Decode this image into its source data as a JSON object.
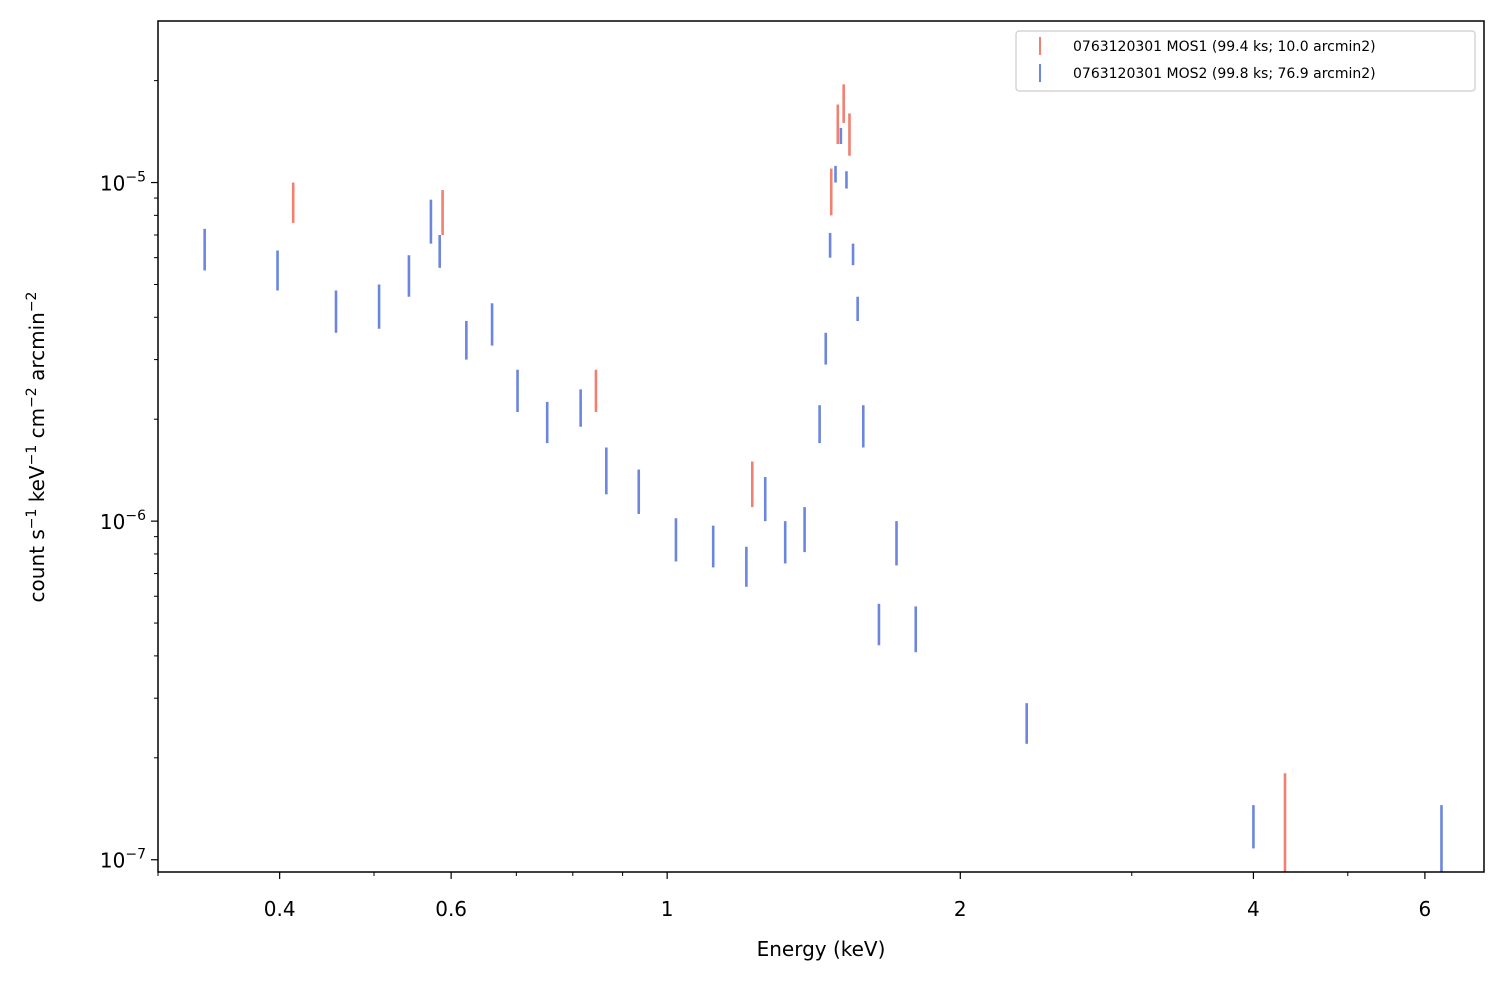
{
  "chart_data": {
    "type": "scatter",
    "title": "",
    "xlabel": "Energy (keV)",
    "ylabel_parts": {
      "base": "count s",
      "sup1": "−1",
      "mid1": " keV",
      "sup2": "−1",
      "mid2": " cm",
      "sup3": "−2",
      "mid3": " arcmin",
      "sup4": "−2"
    },
    "x_scale": "log",
    "y_scale": "log",
    "xlim": [
      0.3,
      6.9
    ],
    "ylim": [
      9.2e-08,
      3e-05
    ],
    "x_ticks": [
      {
        "value": 0.4,
        "label": "0.4"
      },
      {
        "value": 0.6,
        "label": "0.6"
      },
      {
        "value": 1,
        "label": "1"
      },
      {
        "value": 2,
        "label": "2"
      },
      {
        "value": 4,
        "label": "4"
      },
      {
        "value": 6,
        "label": "6"
      }
    ],
    "y_ticks": [
      {
        "value": 1e-07,
        "base": "10",
        "exp": "−7"
      },
      {
        "value": 1e-06,
        "base": "10",
        "exp": "−6"
      },
      {
        "value": 1e-05,
        "base": "10",
        "exp": "−5"
      }
    ],
    "grid": false,
    "legend_position": "top-right",
    "series": [
      {
        "name": "0763120301 MOS1 (99.4 ks; 10.0 arcmin2)",
        "color": "#f08070",
        "points": [
          {
            "x": 0.413,
            "lo": 7.6e-06,
            "hi": 1e-05
          },
          {
            "x": 0.588,
            "lo": 7e-06,
            "hi": 9.5e-06
          },
          {
            "x": 0.845,
            "lo": 2.1e-06,
            "hi": 2.8e-06
          },
          {
            "x": 1.223,
            "lo": 1.1e-06,
            "hi": 1.5e-06
          },
          {
            "x": 1.474,
            "lo": 8e-06,
            "hi": 1.1e-05
          },
          {
            "x": 1.497,
            "lo": 1.3e-05,
            "hi": 1.7e-05
          },
          {
            "x": 1.518,
            "lo": 1.5e-05,
            "hi": 1.95e-05
          },
          {
            "x": 1.539,
            "lo": 1.2e-05,
            "hi": 1.6e-05
          },
          {
            "x": 4.31,
            "lo": 9.2e-08,
            "hi": 1.8e-07
          }
        ]
      },
      {
        "name": "0763120301 MOS2 (99.8 ks; 76.9 arcmin2)",
        "color": "#6b86dc",
        "points": [
          {
            "x": 0.335,
            "lo": 5.5e-06,
            "hi": 7.3e-06
          },
          {
            "x": 0.398,
            "lo": 4.8e-06,
            "hi": 6.3e-06
          },
          {
            "x": 0.457,
            "lo": 3.6e-06,
            "hi": 4.8e-06
          },
          {
            "x": 0.506,
            "lo": 3.7e-06,
            "hi": 5e-06
          },
          {
            "x": 0.543,
            "lo": 4.6e-06,
            "hi": 6.1e-06
          },
          {
            "x": 0.572,
            "lo": 6.6e-06,
            "hi": 8.9e-06
          },
          {
            "x": 0.584,
            "lo": 5.6e-06,
            "hi": 7e-06
          },
          {
            "x": 0.622,
            "lo": 3e-06,
            "hi": 3.9e-06
          },
          {
            "x": 0.661,
            "lo": 3.3e-06,
            "hi": 4.4e-06
          },
          {
            "x": 0.702,
            "lo": 2.1e-06,
            "hi": 2.8e-06
          },
          {
            "x": 0.753,
            "lo": 1.7e-06,
            "hi": 2.25e-06
          },
          {
            "x": 0.815,
            "lo": 1.9e-06,
            "hi": 2.45e-06
          },
          {
            "x": 0.866,
            "lo": 1.2e-06,
            "hi": 1.65e-06
          },
          {
            "x": 0.935,
            "lo": 1.05e-06,
            "hi": 1.42e-06
          },
          {
            "x": 1.021,
            "lo": 7.6e-07,
            "hi": 1.02e-06
          },
          {
            "x": 1.115,
            "lo": 7.3e-07,
            "hi": 9.7e-07
          },
          {
            "x": 1.206,
            "lo": 6.4e-07,
            "hi": 8.4e-07
          },
          {
            "x": 1.261,
            "lo": 1e-06,
            "hi": 1.35e-06
          },
          {
            "x": 1.322,
            "lo": 7.5e-07,
            "hi": 1e-06
          },
          {
            "x": 1.384,
            "lo": 8.1e-07,
            "hi": 1.1e-06
          },
          {
            "x": 1.434,
            "lo": 1.7e-06,
            "hi": 2.2e-06
          },
          {
            "x": 1.455,
            "lo": 2.9e-06,
            "hi": 3.6e-06
          },
          {
            "x": 1.47,
            "lo": 6e-06,
            "hi": 7.1e-06
          },
          {
            "x": 1.489,
            "lo": 1e-05,
            "hi": 1.12e-05
          },
          {
            "x": 1.508,
            "lo": 1.3e-05,
            "hi": 1.45e-05
          },
          {
            "x": 1.528,
            "lo": 9.6e-06,
            "hi": 1.08e-05
          },
          {
            "x": 1.552,
            "lo": 5.7e-06,
            "hi": 6.6e-06
          },
          {
            "x": 1.569,
            "lo": 3.9e-06,
            "hi": 4.6e-06
          },
          {
            "x": 1.59,
            "lo": 1.65e-06,
            "hi": 2.2e-06
          },
          {
            "x": 1.65,
            "lo": 4.3e-07,
            "hi": 5.7e-07
          },
          {
            "x": 1.72,
            "lo": 7.4e-07,
            "hi": 1e-06
          },
          {
            "x": 1.8,
            "lo": 4.1e-07,
            "hi": 5.6e-07
          },
          {
            "x": 2.34,
            "lo": 2.2e-07,
            "hi": 2.9e-07
          },
          {
            "x": 4.0,
            "lo": 1.08e-07,
            "hi": 1.45e-07
          },
          {
            "x": 6.24,
            "lo": 9.2e-08,
            "hi": 1.45e-07
          }
        ]
      }
    ]
  }
}
